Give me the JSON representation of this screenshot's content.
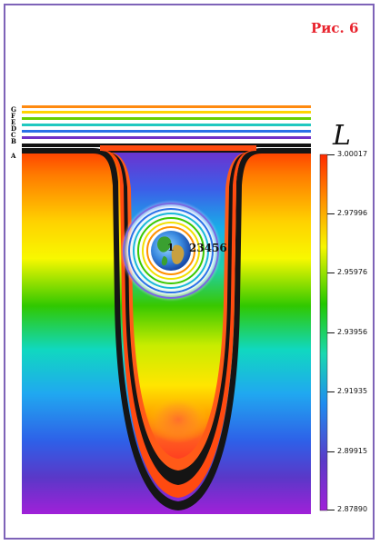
{
  "figure": {
    "title": "Рис. 6"
  },
  "layer_labels": [
    "G",
    "F",
    "E",
    "D",
    "C",
    "B",
    "A"
  ],
  "earth": {
    "center_label": "1",
    "ring_labels": "23456"
  },
  "colorbar": {
    "quantity": "L",
    "ticks": [
      "3.00017",
      "2.97996",
      "2.95976",
      "2.93956",
      "2.91935",
      "2.89915",
      "2.87890"
    ],
    "colors": [
      "#ff2a00",
      "#ffb000",
      "#f6f600",
      "#22c800",
      "#1ad8b0",
      "#1e8cf0",
      "#5a3ac8",
      "#a020d8"
    ]
  },
  "colors": {
    "border": "#7e63b8",
    "title": "#e8232d",
    "well_rim": "#ff4a10"
  }
}
